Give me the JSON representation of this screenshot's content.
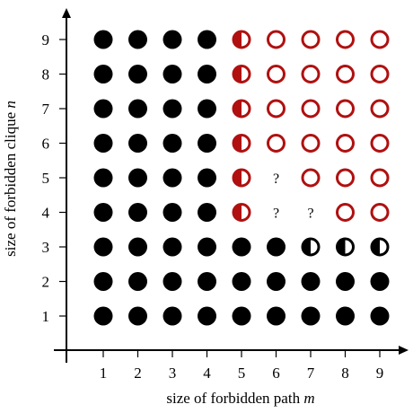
{
  "chart_data": {
    "type": "scatter",
    "title": "",
    "xlabel": "size of forbidden path",
    "xlabel_var": "m",
    "ylabel": "size of forbidden clique",
    "ylabel_var": "n",
    "x_ticks": [
      "1",
      "2",
      "3",
      "4",
      "5",
      "6",
      "7",
      "8",
      "9"
    ],
    "y_ticks": [
      "1",
      "2",
      "3",
      "4",
      "5",
      "6",
      "7",
      "8",
      "9"
    ],
    "xlim": [
      0,
      9.5
    ],
    "ylim": [
      0,
      9.5
    ],
    "grid": false,
    "colors": {
      "full": "#000000",
      "open": "#b01010",
      "half_red": "#b01010",
      "half_black": "#000000"
    },
    "marker_types": [
      "full",
      "half-red",
      "open",
      "half-black",
      "unknown"
    ],
    "unknown_label": "?",
    "points": [
      {
        "m": 1,
        "n": 1,
        "kind": "full"
      },
      {
        "m": 2,
        "n": 1,
        "kind": "full"
      },
      {
        "m": 3,
        "n": 1,
        "kind": "full"
      },
      {
        "m": 4,
        "n": 1,
        "kind": "full"
      },
      {
        "m": 5,
        "n": 1,
        "kind": "full"
      },
      {
        "m": 6,
        "n": 1,
        "kind": "full"
      },
      {
        "m": 7,
        "n": 1,
        "kind": "full"
      },
      {
        "m": 8,
        "n": 1,
        "kind": "full"
      },
      {
        "m": 9,
        "n": 1,
        "kind": "full"
      },
      {
        "m": 1,
        "n": 2,
        "kind": "full"
      },
      {
        "m": 2,
        "n": 2,
        "kind": "full"
      },
      {
        "m": 3,
        "n": 2,
        "kind": "full"
      },
      {
        "m": 4,
        "n": 2,
        "kind": "full"
      },
      {
        "m": 5,
        "n": 2,
        "kind": "full"
      },
      {
        "m": 6,
        "n": 2,
        "kind": "full"
      },
      {
        "m": 7,
        "n": 2,
        "kind": "full"
      },
      {
        "m": 8,
        "n": 2,
        "kind": "full"
      },
      {
        "m": 9,
        "n": 2,
        "kind": "full"
      },
      {
        "m": 1,
        "n": 3,
        "kind": "full"
      },
      {
        "m": 2,
        "n": 3,
        "kind": "full"
      },
      {
        "m": 3,
        "n": 3,
        "kind": "full"
      },
      {
        "m": 4,
        "n": 3,
        "kind": "full"
      },
      {
        "m": 5,
        "n": 3,
        "kind": "full"
      },
      {
        "m": 6,
        "n": 3,
        "kind": "full"
      },
      {
        "m": 7,
        "n": 3,
        "kind": "half-black"
      },
      {
        "m": 8,
        "n": 3,
        "kind": "half-black"
      },
      {
        "m": 9,
        "n": 3,
        "kind": "half-black"
      },
      {
        "m": 1,
        "n": 4,
        "kind": "full"
      },
      {
        "m": 2,
        "n": 4,
        "kind": "full"
      },
      {
        "m": 3,
        "n": 4,
        "kind": "full"
      },
      {
        "m": 4,
        "n": 4,
        "kind": "full"
      },
      {
        "m": 5,
        "n": 4,
        "kind": "half-red"
      },
      {
        "m": 6,
        "n": 4,
        "kind": "unknown"
      },
      {
        "m": 7,
        "n": 4,
        "kind": "unknown"
      },
      {
        "m": 8,
        "n": 4,
        "kind": "open"
      },
      {
        "m": 9,
        "n": 4,
        "kind": "open"
      },
      {
        "m": 1,
        "n": 5,
        "kind": "full"
      },
      {
        "m": 2,
        "n": 5,
        "kind": "full"
      },
      {
        "m": 3,
        "n": 5,
        "kind": "full"
      },
      {
        "m": 4,
        "n": 5,
        "kind": "full"
      },
      {
        "m": 5,
        "n": 5,
        "kind": "half-red"
      },
      {
        "m": 6,
        "n": 5,
        "kind": "unknown"
      },
      {
        "m": 7,
        "n": 5,
        "kind": "open"
      },
      {
        "m": 8,
        "n": 5,
        "kind": "open"
      },
      {
        "m": 9,
        "n": 5,
        "kind": "open"
      },
      {
        "m": 1,
        "n": 6,
        "kind": "full"
      },
      {
        "m": 2,
        "n": 6,
        "kind": "full"
      },
      {
        "m": 3,
        "n": 6,
        "kind": "full"
      },
      {
        "m": 4,
        "n": 6,
        "kind": "full"
      },
      {
        "m": 5,
        "n": 6,
        "kind": "half-red"
      },
      {
        "m": 6,
        "n": 6,
        "kind": "open"
      },
      {
        "m": 7,
        "n": 6,
        "kind": "open"
      },
      {
        "m": 8,
        "n": 6,
        "kind": "open"
      },
      {
        "m": 9,
        "n": 6,
        "kind": "open"
      },
      {
        "m": 1,
        "n": 7,
        "kind": "full"
      },
      {
        "m": 2,
        "n": 7,
        "kind": "full"
      },
      {
        "m": 3,
        "n": 7,
        "kind": "full"
      },
      {
        "m": 4,
        "n": 7,
        "kind": "full"
      },
      {
        "m": 5,
        "n": 7,
        "kind": "half-red"
      },
      {
        "m": 6,
        "n": 7,
        "kind": "open"
      },
      {
        "m": 7,
        "n": 7,
        "kind": "open"
      },
      {
        "m": 8,
        "n": 7,
        "kind": "open"
      },
      {
        "m": 9,
        "n": 7,
        "kind": "open"
      },
      {
        "m": 1,
        "n": 8,
        "kind": "full"
      },
      {
        "m": 2,
        "n": 8,
        "kind": "full"
      },
      {
        "m": 3,
        "n": 8,
        "kind": "full"
      },
      {
        "m": 4,
        "n": 8,
        "kind": "full"
      },
      {
        "m": 5,
        "n": 8,
        "kind": "half-red"
      },
      {
        "m": 6,
        "n": 8,
        "kind": "open"
      },
      {
        "m": 7,
        "n": 8,
        "kind": "open"
      },
      {
        "m": 8,
        "n": 8,
        "kind": "open"
      },
      {
        "m": 9,
        "n": 8,
        "kind": "open"
      },
      {
        "m": 1,
        "n": 9,
        "kind": "full"
      },
      {
        "m": 2,
        "n": 9,
        "kind": "full"
      },
      {
        "m": 3,
        "n": 9,
        "kind": "full"
      },
      {
        "m": 4,
        "n": 9,
        "kind": "full"
      },
      {
        "m": 5,
        "n": 9,
        "kind": "half-red"
      },
      {
        "m": 6,
        "n": 9,
        "kind": "open"
      },
      {
        "m": 7,
        "n": 9,
        "kind": "open"
      },
      {
        "m": 8,
        "n": 9,
        "kind": "open"
      },
      {
        "m": 9,
        "n": 9,
        "kind": "open"
      }
    ]
  }
}
